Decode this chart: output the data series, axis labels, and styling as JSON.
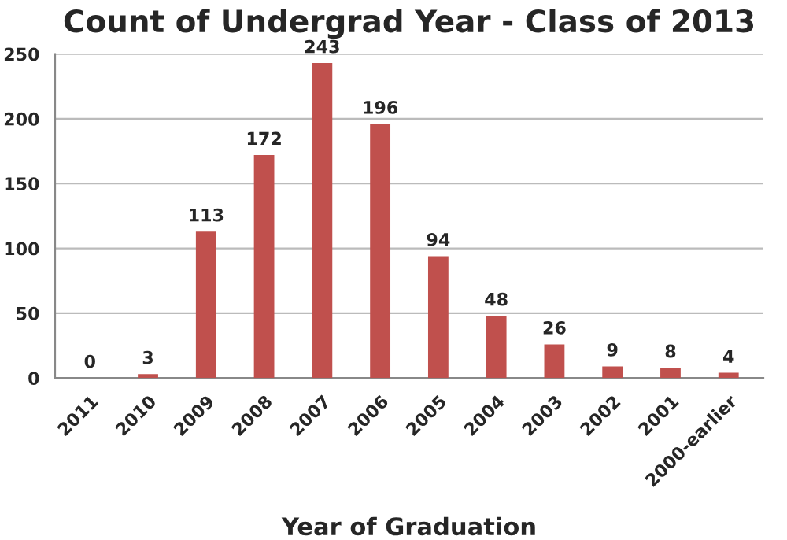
{
  "chart_data": {
    "type": "bar",
    "title": "Count of Undergrad Year - Class of 2013",
    "xlabel": "Year of Graduation",
    "categories": [
      "2011",
      "2010",
      "2009",
      "2008",
      "2007",
      "2006",
      "2005",
      "2004",
      "2003",
      "2002",
      "2001",
      "2000-earlier"
    ],
    "values": [
      0,
      3,
      113,
      172,
      243,
      196,
      94,
      48,
      26,
      9,
      8,
      4
    ],
    "color": "#c0504d",
    "ylim": [
      0,
      250
    ],
    "yticks": [
      0,
      50,
      100,
      150,
      200,
      250
    ],
    "grid": "y",
    "data_labels": true
  }
}
